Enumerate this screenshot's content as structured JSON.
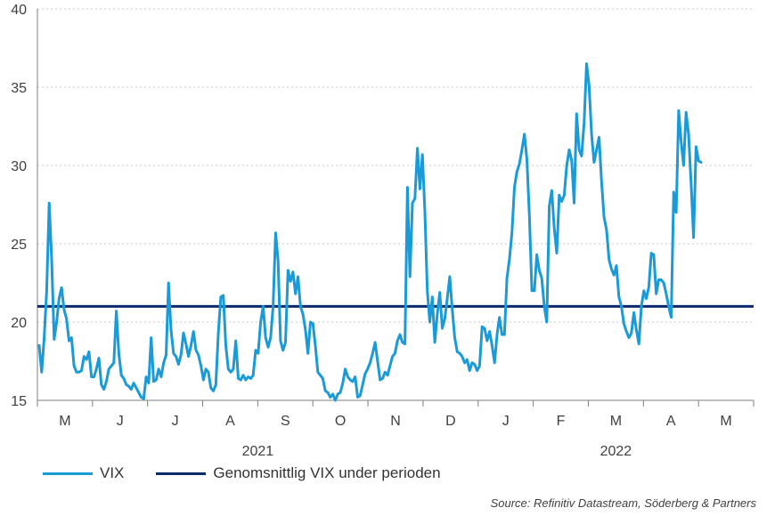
{
  "colors": {
    "vix": "#1a9ad6",
    "average": "#0a2a6b",
    "grid": "#c8c8c8",
    "axis": "#7f7f7f"
  },
  "chart_data": {
    "type": "line",
    "ylim": [
      15,
      40
    ],
    "y_ticks": [
      "15",
      "20",
      "25",
      "30",
      "35",
      "40"
    ],
    "x_ticks": [
      "M",
      "J",
      "J",
      "A",
      "S",
      "O",
      "N",
      "D",
      "J",
      "F",
      "M",
      "A",
      "M"
    ],
    "year_labels": [
      "2021",
      "2022"
    ],
    "grid": "horizontal dotted",
    "legend_position": "bottom-left",
    "series": [
      {
        "name": "VIX",
        "values": [
          18.5,
          16.8,
          19.0,
          22.0,
          27.6,
          24.0,
          18.9,
          20.0,
          21.5,
          22.2,
          20.8,
          20.2,
          18.8,
          19.0,
          17.2,
          16.8,
          16.8,
          16.9,
          17.8,
          17.6,
          18.1,
          16.5,
          16.5,
          17.0,
          17.7,
          16.0,
          15.7,
          16.2,
          17.0,
          17.2,
          17.4,
          20.7,
          18.0,
          16.6,
          16.4,
          16.0,
          15.9,
          15.7,
          16.1,
          15.8,
          15.5,
          15.2,
          15.1,
          16.5,
          16.1,
          19.0,
          16.2,
          16.3,
          17.0,
          16.5,
          17.4,
          17.9,
          22.5,
          19.5,
          18.0,
          17.8,
          17.3,
          17.9,
          19.3,
          18.6,
          17.8,
          18.5,
          19.4,
          18.2,
          17.9,
          17.2,
          16.3,
          17.0,
          16.8,
          15.8,
          15.6,
          16.0,
          19.3,
          21.6,
          21.7,
          18.5,
          17.0,
          16.8,
          17.0,
          18.8,
          16.4,
          16.3,
          16.6,
          16.3,
          16.5,
          16.4,
          16.6,
          18.2,
          18.0,
          20.0,
          21.0,
          19.0,
          18.4,
          19.0,
          21.0,
          25.7,
          23.9,
          18.8,
          18.2,
          18.7,
          23.3,
          22.6,
          23.2,
          21.8,
          22.9,
          21.0,
          20.5,
          19.5,
          18.0,
          20.0,
          19.9,
          18.5,
          16.8,
          16.6,
          16.4,
          15.6,
          15.5,
          15.2,
          15.4,
          15.0,
          15.4,
          15.5,
          16.1,
          17.0,
          16.5,
          16.3,
          16.2,
          16.5,
          15.2,
          15.3,
          16.0,
          16.7,
          17.0,
          17.4,
          18.0,
          18.7,
          17.5,
          16.3,
          16.4,
          16.8,
          16.6,
          17.2,
          17.8,
          18.0,
          18.8,
          19.2,
          18.7,
          18.6,
          28.6,
          22.9,
          27.6,
          27.9,
          31.1,
          28.5,
          30.7,
          27.0,
          22.0,
          20.0,
          21.6,
          18.7,
          20.5,
          21.9,
          19.6,
          20.2,
          21.5,
          22.9,
          20.8,
          19.0,
          18.1,
          18.0,
          17.8,
          17.4,
          17.6,
          16.9,
          17.4,
          17.3,
          16.9,
          17.2,
          19.7,
          19.6,
          18.8,
          19.4,
          18.5,
          17.4,
          19.2,
          20.3,
          19.2,
          19.2,
          22.8,
          24.0,
          25.7,
          28.6,
          29.6,
          30.1,
          31.0,
          32.0,
          30.4,
          26.8,
          22.0,
          22.0,
          24.3,
          23.3,
          22.8,
          21.0,
          20.0,
          27.4,
          28.4,
          26.0,
          24.4,
          28.1,
          27.7,
          28.1,
          30.0,
          31.0,
          30.3,
          27.6,
          33.3,
          31.0,
          30.6,
          32.7,
          36.5,
          35.1,
          32.0,
          30.2,
          31.0,
          31.8,
          29.0,
          26.7,
          25.9,
          24.0,
          23.4,
          23.0,
          23.6,
          21.6,
          21.0,
          19.9,
          19.4,
          19.0,
          19.3,
          20.6,
          19.5,
          18.6,
          21.0,
          22.0,
          21.5,
          22.2,
          24.4,
          24.3,
          21.8,
          22.7,
          22.7,
          22.5,
          21.8,
          21.0,
          20.3,
          28.3,
          27.0,
          33.5,
          31.5,
          30.0,
          33.4,
          32.0,
          28.9,
          25.4,
          31.2,
          30.3,
          30.2
        ]
      },
      {
        "name": "Genomsnittlig VIX under perioden",
        "values": [
          21.0
        ]
      }
    ]
  },
  "legend": {
    "vix_label": "VIX",
    "average_label": "Genomsnittlig VIX under perioden"
  },
  "source": "Source: Refinitiv Datastream, Söderberg & Partners"
}
